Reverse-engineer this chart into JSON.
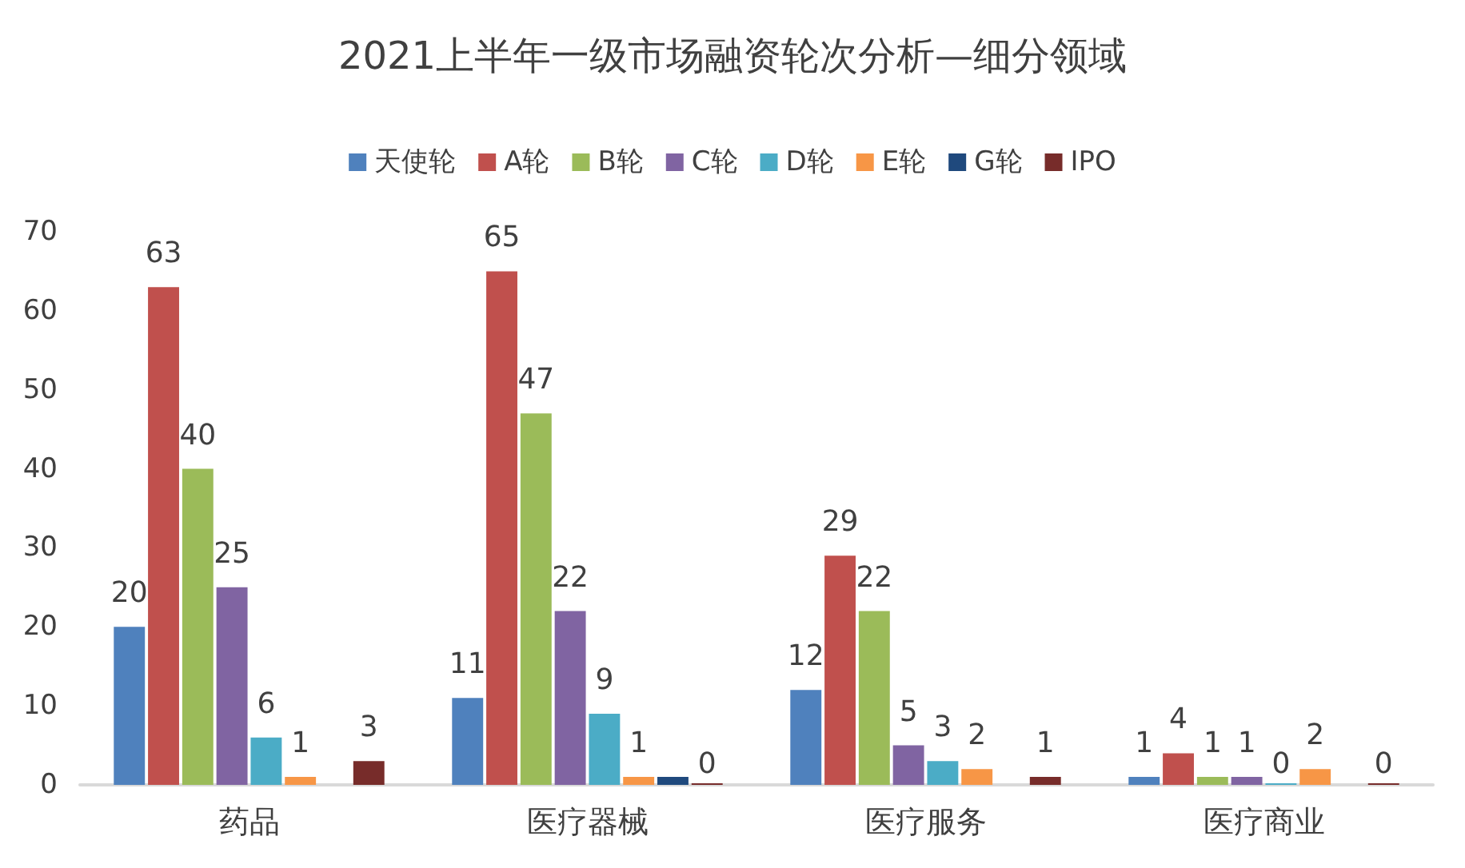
{
  "chart_data": {
    "type": "bar",
    "title": "2021上半年一级市场融资轮次分析—细分领域",
    "categories": [
      "药品",
      "医疗器械",
      "医疗服务",
      "医疗商业"
    ],
    "series": [
      {
        "name": "天使轮",
        "color": "#4f81bd",
        "values": [
          20,
          11,
          12,
          1
        ],
        "value_labels": [
          "20",
          "11",
          "12",
          "1"
        ]
      },
      {
        "name": "A轮",
        "color": "#c0504d",
        "values": [
          63,
          65,
          29,
          4
        ],
        "value_labels": [
          "63",
          "65",
          "29",
          "4"
        ]
      },
      {
        "name": "B轮",
        "color": "#9bbb59",
        "values": [
          40,
          47,
          22,
          1
        ],
        "value_labels": [
          "40",
          "47",
          "22",
          "1"
        ]
      },
      {
        "name": "C轮",
        "color": "#8064a2",
        "values": [
          25,
          22,
          5,
          1
        ],
        "value_labels": [
          "25",
          "22",
          "5",
          "1"
        ]
      },
      {
        "name": "D轮",
        "color": "#4bacc6",
        "values": [
          6,
          9,
          3,
          0
        ],
        "value_labels": [
          "6",
          "9",
          "3",
          "0"
        ]
      },
      {
        "name": "E轮",
        "color": "#f79646",
        "values": [
          1,
          1,
          2,
          2
        ],
        "value_labels": [
          "1",
          "1",
          "2",
          "2"
        ]
      },
      {
        "name": "G轮",
        "color": "#1f497d",
        "values": [
          null,
          1,
          null,
          null
        ],
        "value_labels": [
          null,
          null,
          null,
          null
        ]
      },
      {
        "name": "IPO",
        "color": "#772c2a",
        "values": [
          3,
          0,
          1,
          0
        ],
        "value_labels": [
          "3",
          "0",
          "1",
          "0"
        ]
      }
    ],
    "ylim": [
      0,
      70
    ],
    "yticks": [
      0,
      10,
      20,
      30,
      40,
      50,
      60,
      70
    ],
    "grid": false,
    "legend": "top"
  }
}
